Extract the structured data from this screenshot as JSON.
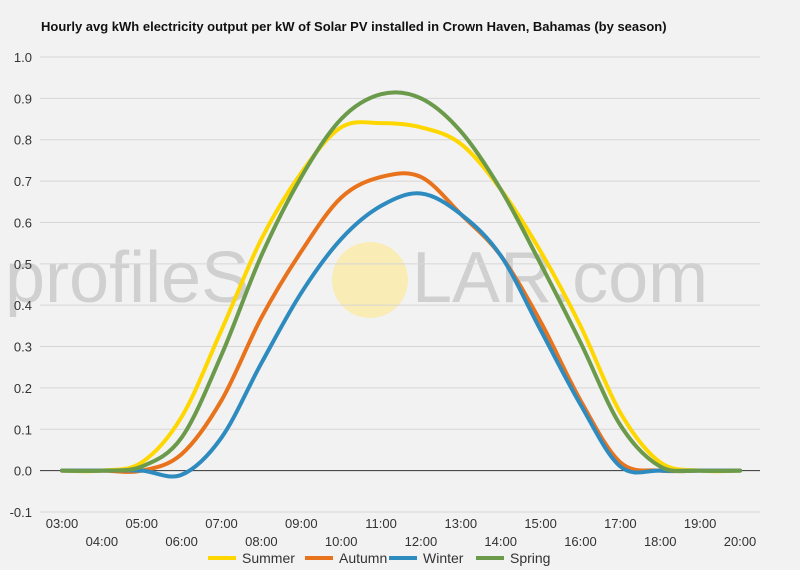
{
  "title": "Hourly avg kWh electricity output per kW of Solar PV installed in Crown Haven, Bahamas (by season)",
  "watermark": "profileSOLAR.com",
  "chart_data": {
    "type": "line",
    "title": "Hourly avg kWh electricity output per kW of Solar PV installed in Crown Haven, Bahamas (by season)",
    "xlabel": "",
    "ylabel": "",
    "x": [
      "03:00",
      "04:00",
      "05:00",
      "06:00",
      "07:00",
      "08:00",
      "09:00",
      "10:00",
      "11:00",
      "12:00",
      "13:00",
      "14:00",
      "15:00",
      "16:00",
      "17:00",
      "18:00",
      "19:00",
      "20:00"
    ],
    "ylim": [
      -0.1,
      1.0
    ],
    "yticks": [
      "1.0",
      "0.9",
      "0.8",
      "0.7",
      "0.6",
      "0.5",
      "0.4",
      "0.3",
      "0.2",
      "0.1",
      "0.0",
      "-0.1"
    ],
    "grid": true,
    "legend_position": "bottom",
    "series": [
      {
        "name": "Summer",
        "color": "#ffd700",
        "values": [
          0,
          0,
          0.02,
          0.13,
          0.34,
          0.56,
          0.72,
          0.83,
          0.84,
          0.83,
          0.79,
          0.68,
          0.53,
          0.35,
          0.14,
          0.02,
          0,
          0
        ]
      },
      {
        "name": "Autumn",
        "color": "#e8731c",
        "values": [
          0,
          0,
          0,
          0.04,
          0.17,
          0.37,
          0.53,
          0.66,
          0.71,
          0.71,
          0.62,
          0.52,
          0.36,
          0.17,
          0.02,
          0,
          0,
          0
        ]
      },
      {
        "name": "Winter",
        "color": "#2e8bc0",
        "values": [
          0,
          0,
          0,
          -0.01,
          0.08,
          0.26,
          0.43,
          0.56,
          0.64,
          0.67,
          0.62,
          0.52,
          0.34,
          0.16,
          0.01,
          0,
          0,
          0
        ]
      },
      {
        "name": "Spring",
        "color": "#6b9a4b",
        "values": [
          0,
          0,
          0.01,
          0.08,
          0.28,
          0.52,
          0.71,
          0.85,
          0.91,
          0.9,
          0.82,
          0.68,
          0.5,
          0.31,
          0.11,
          0.01,
          0,
          0
        ]
      }
    ]
  }
}
